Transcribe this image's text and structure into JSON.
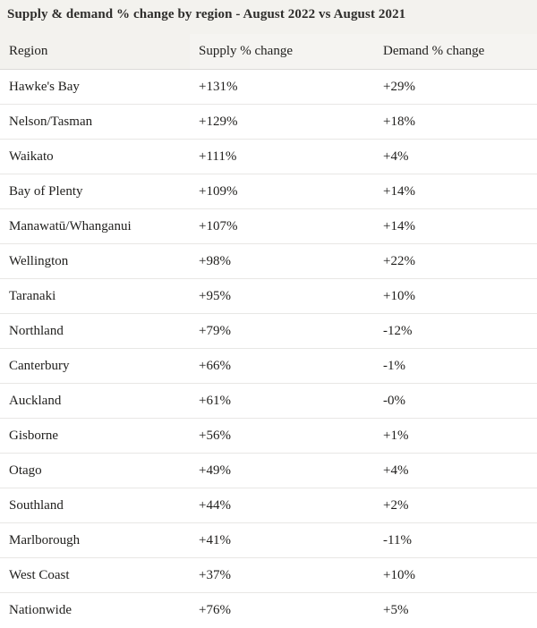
{
  "title": "Supply & demand % change by region - August 2022 vs August 2021",
  "table": {
    "columns": [
      "Region",
      "Supply % change",
      "Demand % change"
    ],
    "rows": [
      {
        "region": "Hawke's Bay",
        "supply": "+131%",
        "demand": "+29%"
      },
      {
        "region": "Nelson/Tasman",
        "supply": "+129%",
        "demand": "+18%"
      },
      {
        "region": "Waikato",
        "supply": "+111%",
        "demand": "+4%"
      },
      {
        "region": "Bay of Plenty",
        "supply": "+109%",
        "demand": "+14%"
      },
      {
        "region": "Manawatū/Whanganui",
        "supply": "+107%",
        "demand": "+14%"
      },
      {
        "region": "Wellington",
        "supply": "+98%",
        "demand": "+22%"
      },
      {
        "region": "Taranaki",
        "supply": "+95%",
        "demand": "+10%"
      },
      {
        "region": "Northland",
        "supply": "+79%",
        "demand": "-12%"
      },
      {
        "region": "Canterbury",
        "supply": "+66%",
        "demand": "-1%"
      },
      {
        "region": "Auckland",
        "supply": "+61%",
        "demand": "-0%"
      },
      {
        "region": "Gisborne",
        "supply": "+56%",
        "demand": "+1%"
      },
      {
        "region": "Otago",
        "supply": "+49%",
        "demand": "+4%"
      },
      {
        "region": "Southland",
        "supply": "+44%",
        "demand": "+2%"
      },
      {
        "region": "Marlborough",
        "supply": "+41%",
        "demand": "-11%"
      },
      {
        "region": "West Coast",
        "supply": "+37%",
        "demand": "+10%"
      },
      {
        "region": "Nationwide",
        "supply": "+76%",
        "demand": "+5%"
      }
    ]
  },
  "chart_data": {
    "type": "table",
    "title": "Supply & demand % change by region - August 2022 vs August 2021",
    "columns": [
      "Region",
      "Supply % change",
      "Demand % change"
    ],
    "categories": [
      "Hawke's Bay",
      "Nelson/Tasman",
      "Waikato",
      "Bay of Plenty",
      "Manawatū/Whanganui",
      "Wellington",
      "Taranaki",
      "Northland",
      "Canterbury",
      "Auckland",
      "Gisborne",
      "Otago",
      "Southland",
      "Marlborough",
      "West Coast",
      "Nationwide"
    ],
    "series": [
      {
        "name": "Supply % change",
        "values": [
          131,
          129,
          111,
          109,
          107,
          98,
          95,
          79,
          66,
          61,
          56,
          49,
          44,
          41,
          37,
          76
        ]
      },
      {
        "name": "Demand % change",
        "values": [
          29,
          18,
          4,
          14,
          14,
          22,
          10,
          -12,
          -1,
          0,
          1,
          4,
          2,
          -11,
          10,
          5
        ]
      }
    ],
    "units": "percent change"
  },
  "colors": {
    "header_background": "#f3f2ee",
    "row_background": "#ffffff",
    "row_border": "#e8e7e5",
    "header_border": "#dcdbd8",
    "text": "#1f1e1c"
  }
}
